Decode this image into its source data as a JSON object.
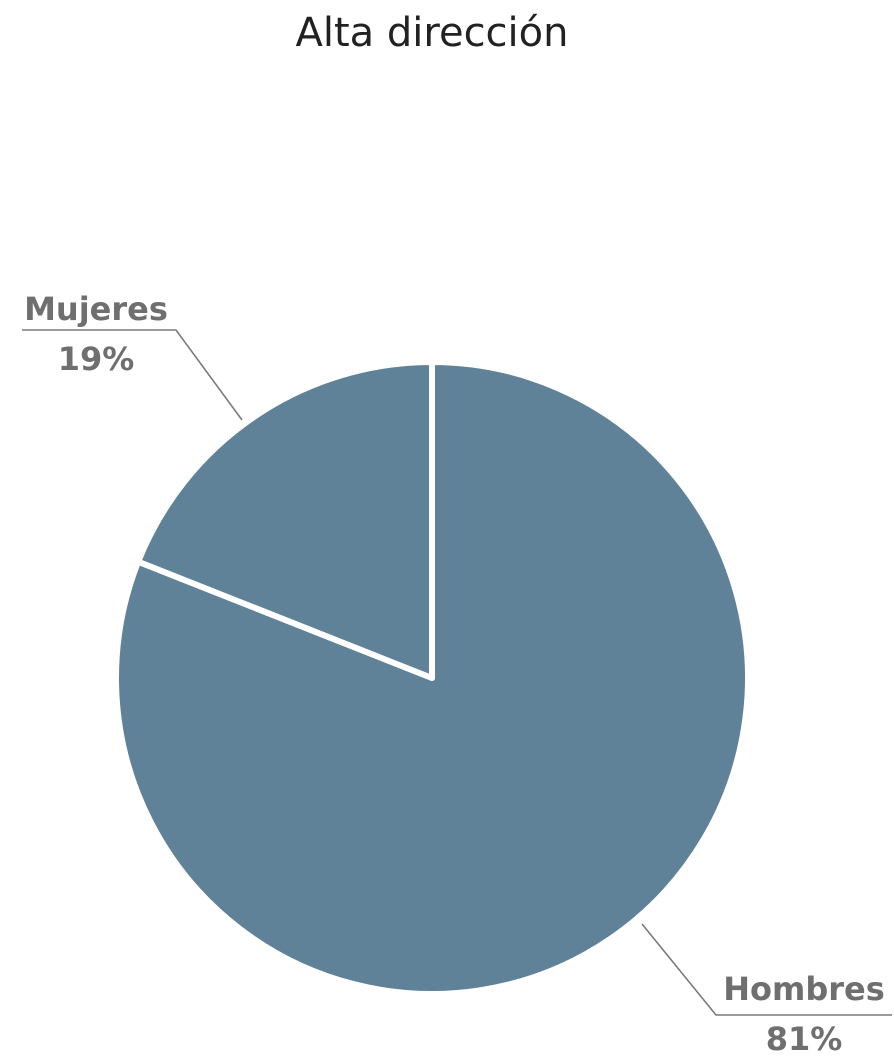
{
  "chart_data": {
    "type": "pie",
    "title": "Alta dirección",
    "categories": [
      "Hombres",
      "Mujeres"
    ],
    "values": [
      81,
      19
    ],
    "value_labels": [
      "81%",
      "19%"
    ],
    "unit": "%",
    "colors": [
      "#5f8299",
      "#5f8299"
    ],
    "start_angle_deg": 0,
    "direction": "clockwise",
    "legend": "none"
  }
}
